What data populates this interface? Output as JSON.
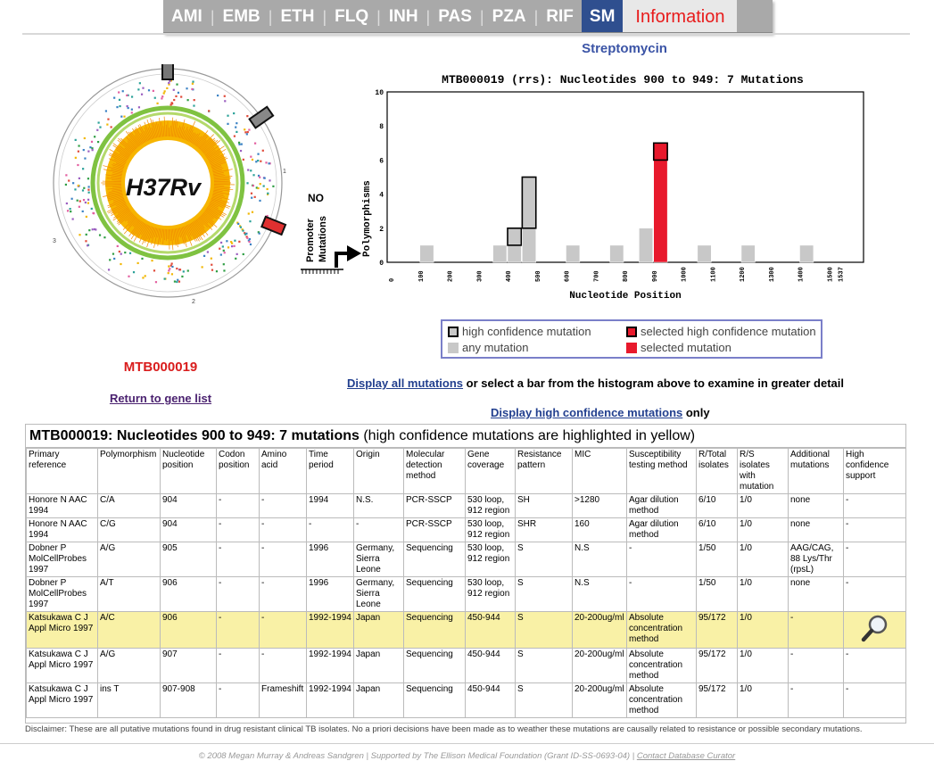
{
  "tabs": [
    {
      "label": "AMI",
      "selected": false
    },
    {
      "label": "EMB",
      "selected": false
    },
    {
      "label": "ETH",
      "selected": false
    },
    {
      "label": "FLQ",
      "selected": false
    },
    {
      "label": "INH",
      "selected": false
    },
    {
      "label": "PAS",
      "selected": false
    },
    {
      "label": "PZA",
      "selected": false
    },
    {
      "label": "RIF",
      "selected": false
    },
    {
      "label": "SM",
      "selected": true
    },
    {
      "label": "Information",
      "selected": false
    }
  ],
  "drug_title": "Streptomycin",
  "genome": {
    "label": "H37Rv",
    "ticks": [
      "1",
      "2",
      "3"
    ]
  },
  "gene_id": "MTB000019",
  "return_link": "Return to gene list",
  "promoter": {
    "no": "NO",
    "label1": "Promoter",
    "label2": "Mutations"
  },
  "chart_data": {
    "type": "bar",
    "title": "MTB000019 (rrs): Nucleotides 900 to 949: 7 Mutations",
    "xlabel": "Nucleotide Position",
    "ylabel": "Polymorphisms",
    "ylim": [
      0,
      10
    ],
    "yticks": [
      "0",
      "2",
      "4",
      "6",
      "8",
      "10"
    ],
    "xticks": [
      "0",
      "100",
      "200",
      "300",
      "400",
      "500",
      "600",
      "700",
      "800",
      "900",
      "1000",
      "1100",
      "1200",
      "1300",
      "1400",
      "1500",
      "1537"
    ],
    "bars": [
      {
        "bin": 2,
        "any": 1,
        "high": 0,
        "selected": false
      },
      {
        "bin": 7,
        "any": 1,
        "high": 0,
        "selected": false
      },
      {
        "bin": 8,
        "any": 1,
        "high": 1,
        "selected": false
      },
      {
        "bin": 9,
        "any": 2,
        "high": 3,
        "selected": false
      },
      {
        "bin": 12,
        "any": 1,
        "high": 0,
        "selected": false
      },
      {
        "bin": 15,
        "any": 1,
        "high": 0,
        "selected": false
      },
      {
        "bin": 17,
        "any": 2,
        "high": 0,
        "selected": false
      },
      {
        "bin": 18,
        "any": 6,
        "high": 1,
        "selected": true
      },
      {
        "bin": 21,
        "any": 1,
        "high": 0,
        "selected": false
      },
      {
        "bin": 24,
        "any": 1,
        "high": 0,
        "selected": false
      },
      {
        "bin": 28,
        "any": 1,
        "high": 0,
        "selected": false
      }
    ],
    "colors": {
      "any": "#c8c8c8",
      "selected": "#e8192c"
    }
  },
  "legend": {
    "high": "high confidence mutation",
    "any": "any mutation",
    "sel_high": "selected high confidence mutation",
    "sel": "selected mutation"
  },
  "display_all": "Display all mutations",
  "display_all_rest": " or select a bar from the histogram above to examine in greater detail",
  "display_hc": "Display high confidence mutations",
  "display_hc_rest": " only",
  "table": {
    "caption_bold": "MTB000019: Nucleotides 900 to 949: 7 mutations",
    "caption_rest": " (high confidence mutations are highlighted in yellow)",
    "headers": [
      "Primary reference",
      "Polymorphism",
      "Nucleotide position",
      "Codon position",
      "Amino acid",
      "Time period",
      "Origin",
      "Molecular detection method",
      "Gene coverage",
      "Resistance pattern",
      "MIC",
      "Susceptibility testing method",
      "R/Total isolates",
      "R/S isolates with mutation",
      "Additional mutations",
      "High confidence support"
    ],
    "rows": [
      {
        "hc": false,
        "cells": [
          "Honore N AAC 1994",
          "C/A",
          "904",
          "-",
          "-",
          "1994",
          "N.S.",
          "PCR-SSCP",
          "530 loop, 912 region",
          "SH",
          ">1280",
          "Agar dilution method",
          "6/10",
          "1/0",
          "none",
          "-"
        ]
      },
      {
        "hc": false,
        "cells": [
          "Honore N AAC 1994",
          "C/G",
          "904",
          "-",
          "-",
          "-",
          "-",
          "PCR-SSCP",
          "530 loop, 912 region",
          "SHR",
          "160",
          "Agar dilution method",
          "6/10",
          "1/0",
          "none",
          "-"
        ]
      },
      {
        "hc": false,
        "cells": [
          "Dobner P MolCellProbes 1997",
          "A/G",
          "905",
          "-",
          "-",
          "1996",
          "Germany, Sierra Leone",
          "Sequencing",
          "530 loop, 912 region",
          "S",
          "N.S",
          "-",
          "1/50",
          "1/0",
          "AAG/CAG, 88 Lys/Thr (rpsL)",
          "-"
        ]
      },
      {
        "hc": false,
        "cells": [
          "Dobner P MolCellProbes 1997",
          "A/T",
          "906",
          "-",
          "-",
          "1996",
          "Germany, Sierra Leone",
          "Sequencing",
          "530 loop, 912 region",
          "S",
          "N.S",
          "-",
          "1/50",
          "1/0",
          "none",
          "-"
        ]
      },
      {
        "hc": true,
        "cells": [
          "Katsukawa C J Appl Micro 1997",
          "A/C",
          "906",
          "-",
          "-",
          "1992-1994",
          "Japan",
          "Sequencing",
          "450-944",
          "S",
          "20-200ug/ml",
          "Absolute concentration method",
          "95/172",
          "1/0",
          "-",
          ""
        ]
      },
      {
        "hc": false,
        "cells": [
          "Katsukawa C J Appl Micro 1997",
          "A/G",
          "907",
          "-",
          "-",
          "1992-1994",
          "Japan",
          "Sequencing",
          "450-944",
          "S",
          "20-200ug/ml",
          "Absolute concentration method",
          "95/172",
          "1/0",
          "-",
          "-"
        ]
      },
      {
        "hc": false,
        "cells": [
          "Katsukawa C J Appl Micro 1997",
          "ins T",
          "907-908",
          "-",
          "Frameshift",
          "1992-1994",
          "Japan",
          "Sequencing",
          "450-944",
          "S",
          "20-200ug/ml",
          "Absolute concentration method",
          "95/172",
          "1/0",
          "-",
          "-"
        ]
      }
    ]
  },
  "disclaimer": "Disclaimer: These are all putative mutations found in drug resistant clinical TB isolates. No a priori decisions have been made as to weather these mutations are causally related to resistance or possible secondary mutations.",
  "footer": {
    "text": "© 2008 Megan Murray & Andreas Sandgren  |  Supported by The Ellison Medical Foundation (Grant ID-SS-0693-04)  |  ",
    "link": "Contact Database Curator"
  }
}
